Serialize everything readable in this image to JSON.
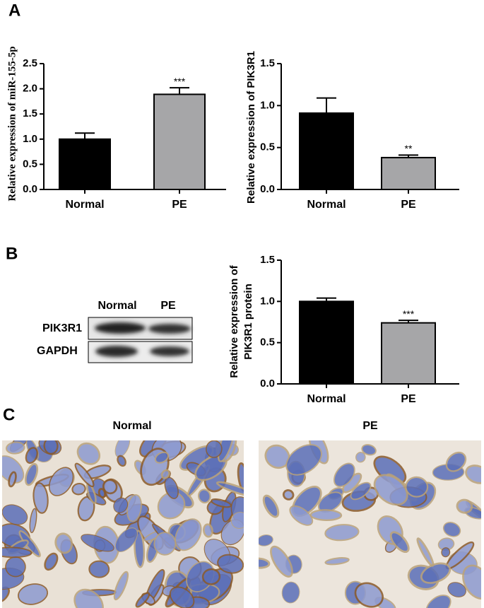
{
  "panel_labels": [
    "A",
    "B",
    "C"
  ],
  "chart_data": [
    {
      "type": "bar",
      "ylabel": [
        "Relative expression of miR-155-5p"
      ],
      "categories": [
        "Normal",
        "PE"
      ],
      "values": [
        1.0,
        1.89
      ],
      "errors": [
        0.12,
        0.13
      ],
      "significance": [
        null,
        "***"
      ],
      "colors": [
        "#000000",
        "#a6a6a8"
      ],
      "ylim": [
        0,
        2.5
      ],
      "yticks": [
        {
          "value": 0,
          "label": "0.0"
        },
        {
          "value": 0.5,
          "label": "0.5"
        },
        {
          "value": 1,
          "label": "1.0"
        },
        {
          "value": 1.5,
          "label": "1.5"
        },
        {
          "value": 2,
          "label": "2.0"
        },
        {
          "value": 2.5,
          "label": "2.5"
        }
      ]
    },
    {
      "type": "bar",
      "ylabel": [
        "Relative expression of PIK3R1"
      ],
      "categories": [
        "Normal",
        "PE"
      ],
      "values": [
        0.91,
        0.38
      ],
      "errors": [
        0.18,
        0.03
      ],
      "significance": [
        null,
        "**"
      ],
      "colors": [
        "#000000",
        "#a6a6a8"
      ],
      "ylim": [
        0,
        1.5
      ],
      "yticks": [
        {
          "value": 0,
          "label": "0.0"
        },
        {
          "value": 0.5,
          "label": "0.5"
        },
        {
          "value": 1,
          "label": "1.0"
        },
        {
          "value": 1.5,
          "label": "1.5"
        }
      ]
    },
    {
      "type": "bar",
      "ylabel": [
        "Relative expression of",
        "PIK3R1 protein"
      ],
      "categories": [
        "Normal",
        "PE"
      ],
      "values": [
        1.0,
        0.74
      ],
      "errors": [
        0.04,
        0.03
      ],
      "significance": [
        null,
        "***"
      ],
      "colors": [
        "#000000",
        "#a6a6a8"
      ],
      "ylim": [
        0,
        1.5
      ],
      "yticks": [
        {
          "value": 0,
          "label": "0.0"
        },
        {
          "value": 0.5,
          "label": "0.5"
        },
        {
          "value": 1,
          "label": "1.0"
        },
        {
          "value": 1.5,
          "label": "1.5"
        }
      ]
    }
  ],
  "blot": {
    "columns": [
      "Normal",
      "PE"
    ],
    "rows": [
      "PIK3R1",
      "GAPDH"
    ]
  },
  "images": {
    "titles": [
      "Normal",
      "PE"
    ]
  }
}
